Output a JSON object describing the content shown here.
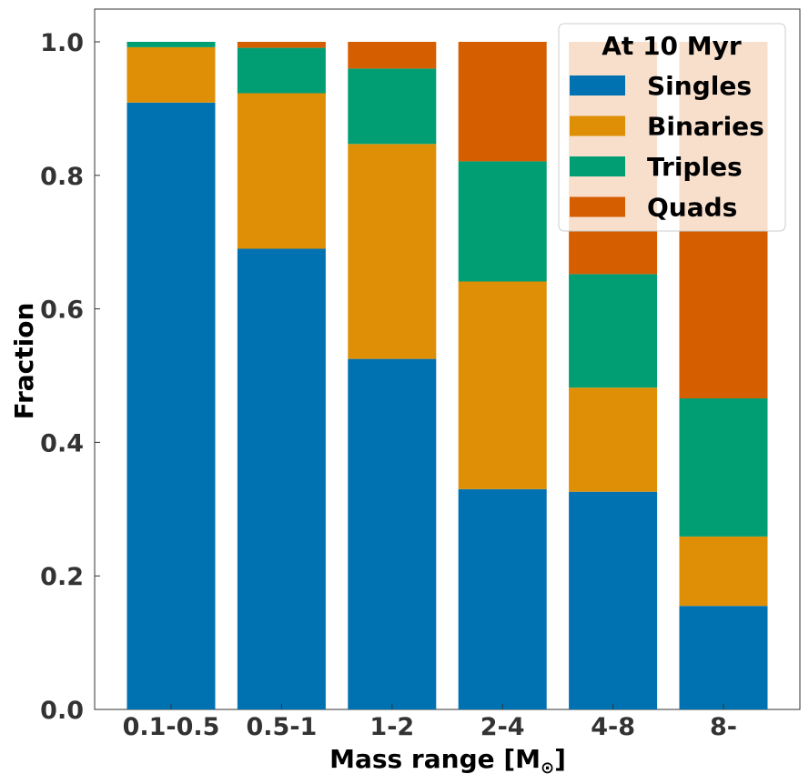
{
  "chart_data": {
    "type": "bar",
    "stacked": true,
    "categories": [
      "0.1-0.5",
      "0.5-1",
      "1-2",
      "2-4",
      "4-8",
      "8-"
    ],
    "series": [
      {
        "name": "Singles",
        "color": "#0072b2",
        "values": [
          0.909,
          0.69,
          0.525,
          0.33,
          0.326,
          0.155
        ]
      },
      {
        "name": "Binaries",
        "color": "#de8f05",
        "values": [
          0.083,
          0.233,
          0.322,
          0.311,
          0.156,
          0.104
        ]
      },
      {
        "name": "Triples",
        "color": "#029e73",
        "values": [
          0.008,
          0.068,
          0.113,
          0.18,
          0.17,
          0.207
        ]
      },
      {
        "name": "Quads",
        "color": "#d55e00",
        "values": [
          0.0,
          0.009,
          0.04,
          0.179,
          0.348,
          0.534
        ]
      }
    ],
    "legend_title": "At 10 Myr",
    "legend_position": "top-right",
    "xlabel": "Mass range [M",
    "xlabel_sub": "⊙",
    "xlabel_end": "]",
    "ylabel": "Fraction",
    "ylim": [
      0,
      1.05
    ],
    "yticks": [
      "0.0",
      "0.2",
      "0.4",
      "0.6",
      "0.8",
      "1.0"
    ],
    "grid": false
  }
}
